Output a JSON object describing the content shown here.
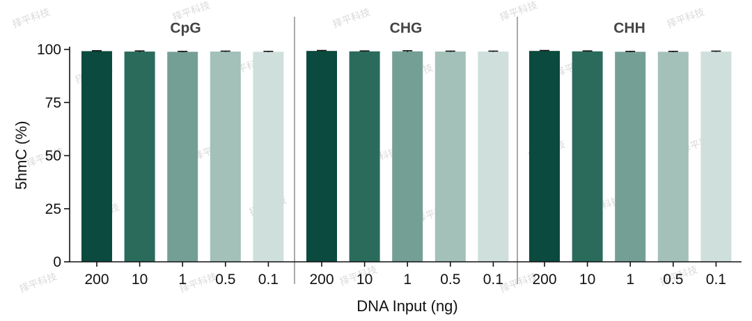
{
  "chart_data": {
    "type": "bar",
    "ylabel": "5hmC (%)",
    "xlabel": "DNA Input (ng)",
    "ylim": [
      0,
      100
    ],
    "yticks": [
      0,
      25,
      50,
      75,
      100
    ],
    "categories": [
      "200",
      "10",
      "1",
      "0.5",
      "0.1"
    ],
    "bar_colors": [
      "#0b4a3e",
      "#2a6b5c",
      "#749f95",
      "#a3c0b9",
      "#cfe0dc"
    ],
    "panels": [
      {
        "title": "CpG",
        "values": [
          99.2,
          99.0,
          98.9,
          99.0,
          98.9
        ],
        "errors": [
          0.2,
          0.3,
          0.2,
          0.2,
          0.2
        ]
      },
      {
        "title": "CHG",
        "values": [
          99.3,
          99.1,
          99.1,
          99.0,
          99.0
        ],
        "errors": [
          0.2,
          0.2,
          0.3,
          0.2,
          0.2
        ]
      },
      {
        "title": "CHH",
        "values": [
          99.3,
          99.1,
          98.9,
          98.9,
          99.0
        ],
        "errors": [
          0.2,
          0.2,
          0.2,
          0.2,
          0.2
        ]
      }
    ]
  },
  "watermark_text": "择平科技"
}
